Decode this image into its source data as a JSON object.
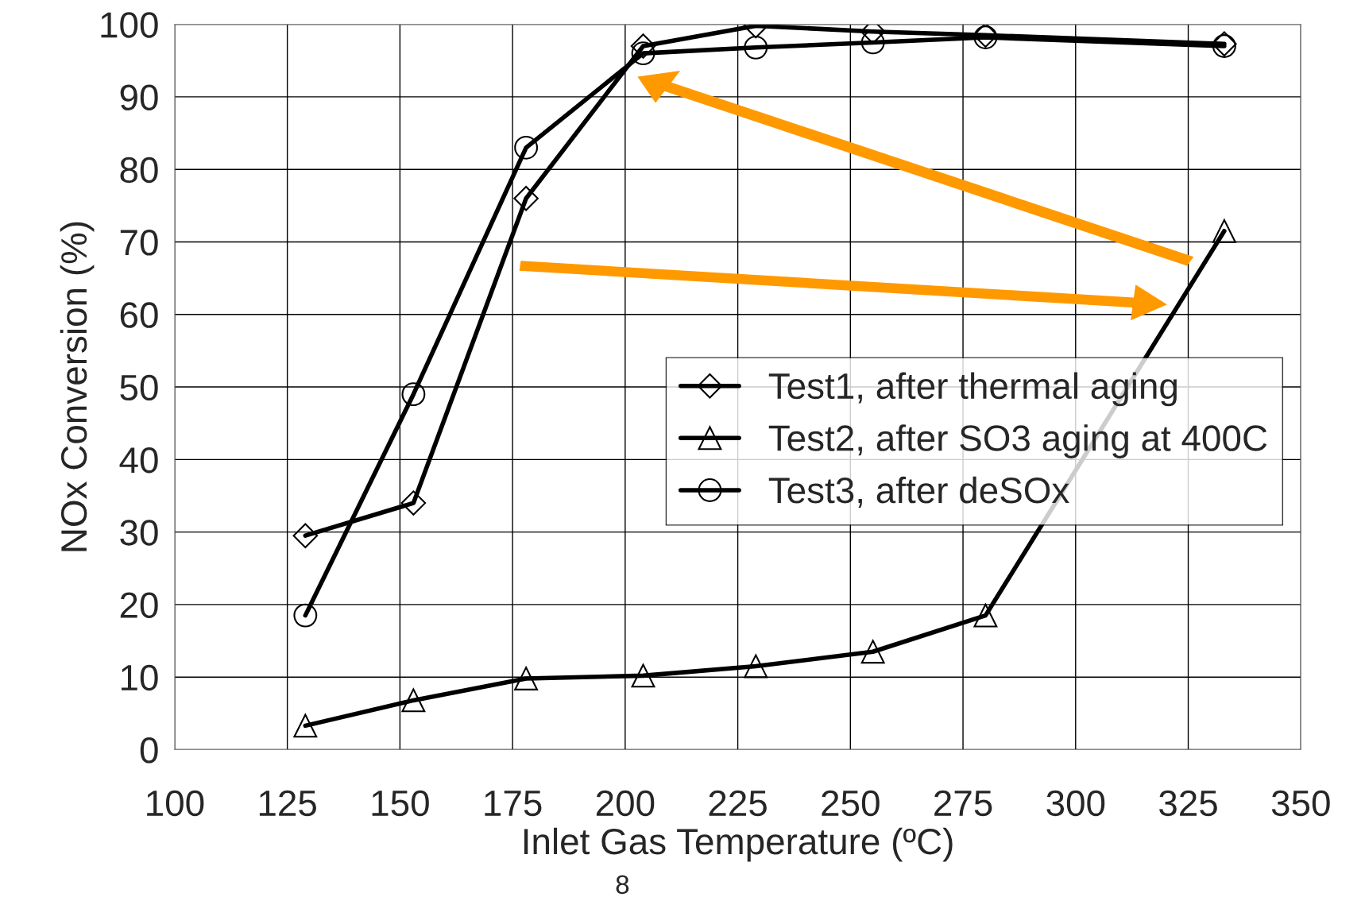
{
  "chart_data": {
    "type": "line",
    "xlabel": "Inlet Gas Temperature (ºC)",
    "ylabel": "NOx Conversion (%)",
    "xlim": [
      100,
      350
    ],
    "xticks": [
      100,
      125,
      150,
      175,
      200,
      225,
      250,
      275,
      300,
      325,
      350
    ],
    "ylim": [
      0,
      100
    ],
    "yticks": [
      0,
      10,
      20,
      30,
      40,
      50,
      60,
      70,
      80,
      90,
      100
    ],
    "grid": true,
    "legend": "right",
    "series": [
      {
        "name": "Test1, after thermal aging",
        "color": "#000000",
        "marker": "diamond",
        "x": [
          129,
          153,
          178,
          204,
          229,
          255,
          280,
          333
        ],
        "values": [
          29.5,
          34,
          76,
          97,
          99.8,
          99,
          98.5,
          97.3
        ]
      },
      {
        "name": "Test2, after SO3 aging at 400C",
        "color": "#000000",
        "marker": "triangle",
        "x": [
          129,
          153,
          178,
          204,
          229,
          255,
          280,
          333
        ],
        "values": [
          3.3,
          6.8,
          9.8,
          10.2,
          11.5,
          13.5,
          18.5,
          71.5
        ]
      },
      {
        "name": "Test3, after deSOx",
        "color": "#000000",
        "marker": "circle",
        "x": [
          129,
          153,
          178,
          204,
          229,
          255,
          280,
          333
        ],
        "values": [
          18.5,
          49,
          83,
          96,
          96.8,
          97.5,
          98.2,
          97
        ]
      }
    ],
    "annotations": [
      "8"
    ]
  }
}
